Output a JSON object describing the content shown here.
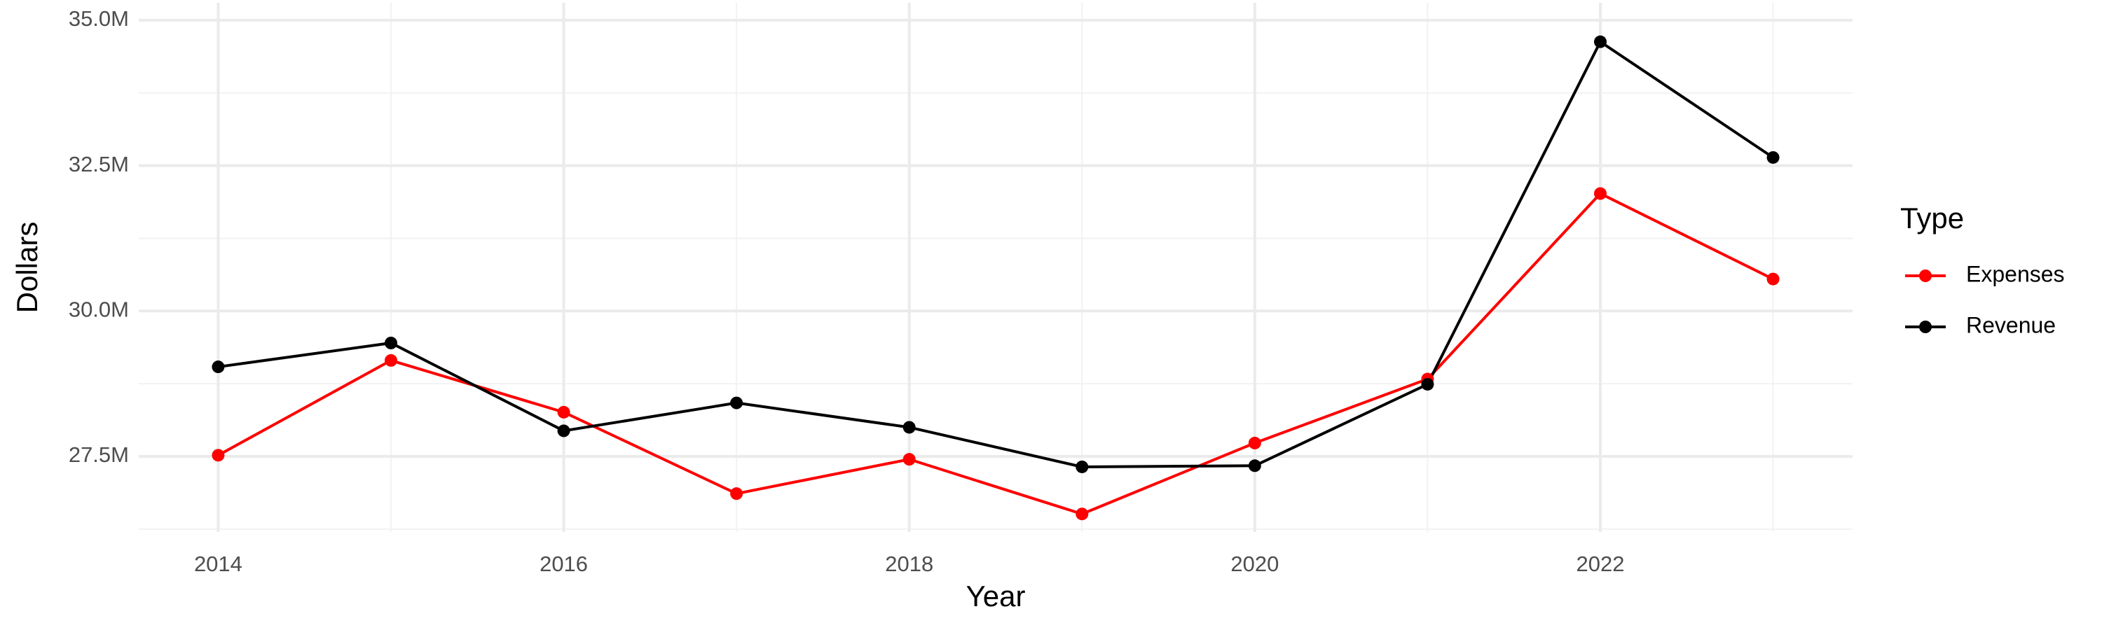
{
  "chart_data": {
    "type": "line",
    "x_label": "Year",
    "y_label": "Dollars",
    "legend_title": "Type",
    "x": [
      2014,
      2015,
      2016,
      2017,
      2018,
      2019,
      2020,
      2021,
      2022,
      2023
    ],
    "series": [
      {
        "name": "Expenses",
        "color": "#ff0000",
        "values": [
          27520000,
          29150000,
          28260000,
          26860000,
          27450000,
          26510000,
          27730000,
          28830000,
          32020000,
          30550000
        ]
      },
      {
        "name": "Revenue",
        "color": "#000000",
        "values": [
          29040000,
          29450000,
          27940000,
          28420000,
          28000000,
          27320000,
          27340000,
          28740000,
          34630000,
          32640000
        ]
      }
    ],
    "xlim": [
      2013.54,
      2023.46
    ],
    "xticks": [
      2014,
      2016,
      2018,
      2020,
      2022
    ],
    "ylim": [
      26200000,
      35300000
    ],
    "yticks": [
      {
        "value": 27500000,
        "label": "27.5M"
      },
      {
        "value": 30000000,
        "label": "30.0M"
      },
      {
        "value": 32500000,
        "label": "32.5M"
      },
      {
        "value": 35000000,
        "label": "35.0M"
      }
    ],
    "grid": true,
    "minor_grid": true,
    "legend": "right"
  }
}
